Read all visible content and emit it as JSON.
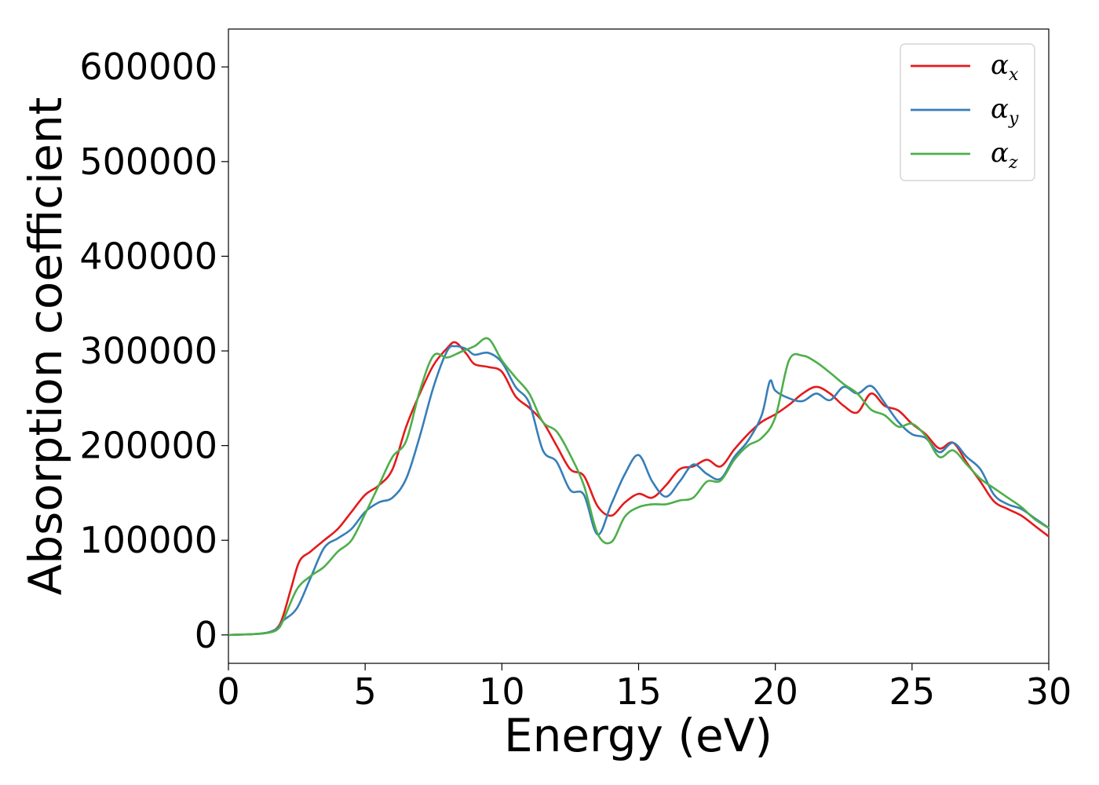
{
  "chart_data": {
    "type": "line",
    "xlabel": "Energy (eV)",
    "ylabel": "Absorption coefficient",
    "xlim": [
      0,
      30
    ],
    "ylim": [
      -30000,
      640000
    ],
    "xticks": [
      0,
      5,
      10,
      15,
      20,
      25,
      30
    ],
    "yticks": [
      0,
      100000,
      200000,
      300000,
      400000,
      500000,
      600000
    ],
    "grid": false,
    "legend_position": "top-right",
    "series": [
      {
        "name": "α_x",
        "legend_symbol": "α",
        "legend_subscript": "x",
        "color": "#e41a1c",
        "x": [
          0,
          1,
          1.5,
          1.8,
          2,
          2.3,
          2.6,
          3,
          3.5,
          4,
          4.5,
          5,
          5.5,
          6,
          6.5,
          7,
          7.5,
          8,
          8.3,
          8.7,
          9,
          9.5,
          10,
          10.5,
          11,
          11.5,
          12,
          12.5,
          13,
          13.5,
          14,
          14.5,
          15,
          15.5,
          16,
          16.5,
          17,
          17.5,
          18,
          18.5,
          19,
          19.5,
          20,
          20.5,
          21,
          21.5,
          22,
          22.5,
          23,
          23.5,
          24,
          24.5,
          25,
          25.5,
          26,
          26.5,
          27,
          27.5,
          28,
          28.5,
          29,
          29.5,
          30
        ],
        "y": [
          0,
          1000,
          3000,
          8000,
          20000,
          50000,
          78000,
          88000,
          100000,
          112000,
          130000,
          148000,
          158000,
          175000,
          220000,
          255000,
          285000,
          303000,
          309000,
          297000,
          286000,
          283000,
          278000,
          252000,
          240000,
          225000,
          200000,
          175000,
          168000,
          136000,
          126000,
          140000,
          149000,
          145000,
          158000,
          175000,
          178000,
          185000,
          178000,
          196000,
          212000,
          225000,
          233000,
          243000,
          255000,
          262000,
          255000,
          242000,
          235000,
          255000,
          242000,
          237000,
          223000,
          212000,
          197000,
          203000,
          182000,
          162000,
          141000,
          133000,
          126000,
          115000,
          104000
        ]
      },
      {
        "name": "α_y",
        "legend_symbol": "α",
        "legend_subscript": "y",
        "color": "#377eb8",
        "x": [
          0,
          1,
          1.5,
          1.8,
          2,
          2.5,
          3,
          3.5,
          4,
          4.5,
          5,
          5.5,
          6,
          6.5,
          7,
          7.5,
          8,
          8.3,
          8.7,
          9,
          9.5,
          10,
          10.5,
          11,
          11.5,
          12,
          12.5,
          13,
          13.5,
          14,
          14.5,
          15,
          15.5,
          16,
          16.5,
          17,
          17.5,
          18,
          18.5,
          19,
          19.5,
          19.8,
          20,
          20.5,
          21,
          21.5,
          22,
          22.5,
          23,
          23.5,
          24,
          24.5,
          25,
          25.5,
          26,
          26.5,
          27,
          27.5,
          28,
          28.5,
          29,
          29.5,
          30
        ],
        "y": [
          0,
          1000,
          3000,
          7000,
          15000,
          28000,
          60000,
          92000,
          102000,
          112000,
          130000,
          140000,
          145000,
          165000,
          210000,
          262000,
          300000,
          305000,
          302000,
          296000,
          298000,
          288000,
          262000,
          245000,
          195000,
          183000,
          153000,
          148000,
          106000,
          138000,
          170000,
          190000,
          162000,
          146000,
          162000,
          180000,
          170000,
          165000,
          188000,
          205000,
          232000,
          268000,
          258000,
          250000,
          247000,
          255000,
          248000,
          262000,
          255000,
          263000,
          245000,
          225000,
          212000,
          208000,
          193000,
          203000,
          188000,
          175000,
          148000,
          138000,
          133000,
          123000,
          113000
        ]
      },
      {
        "name": "α_z",
        "legend_symbol": "α",
        "legend_subscript": "z",
        "color": "#4daf4a",
        "x": [
          0,
          1,
          1.5,
          1.8,
          2,
          2.5,
          3,
          3.5,
          4,
          4.5,
          5,
          5.5,
          6,
          6.5,
          7,
          7.5,
          8,
          8.5,
          9,
          9.5,
          10,
          10.5,
          11,
          11.5,
          12,
          12.5,
          13,
          13.5,
          14,
          14.5,
          15,
          15.5,
          16,
          16.5,
          17,
          17.5,
          18,
          18.5,
          19,
          19.5,
          20,
          20.5,
          21,
          21.5,
          22,
          22.5,
          23,
          23.5,
          24,
          24.5,
          25,
          25.5,
          26,
          26.5,
          27,
          27.5,
          28,
          28.5,
          29,
          29.5,
          30
        ],
        "y": [
          0,
          1000,
          2500,
          6000,
          15000,
          48000,
          62000,
          72000,
          88000,
          100000,
          128000,
          158000,
          188000,
          205000,
          258000,
          295000,
          293000,
          299000,
          305000,
          313000,
          290000,
          272000,
          255000,
          225000,
          215000,
          190000,
          158000,
          107000,
          98000,
          125000,
          135000,
          138000,
          138000,
          142000,
          145000,
          162000,
          163000,
          185000,
          200000,
          208000,
          230000,
          290000,
          295000,
          288000,
          277000,
          265000,
          255000,
          238000,
          232000,
          220000,
          223000,
          210000,
          188000,
          195000,
          180000,
          165000,
          155000,
          145000,
          135000,
          122000,
          113000
        ]
      }
    ]
  }
}
